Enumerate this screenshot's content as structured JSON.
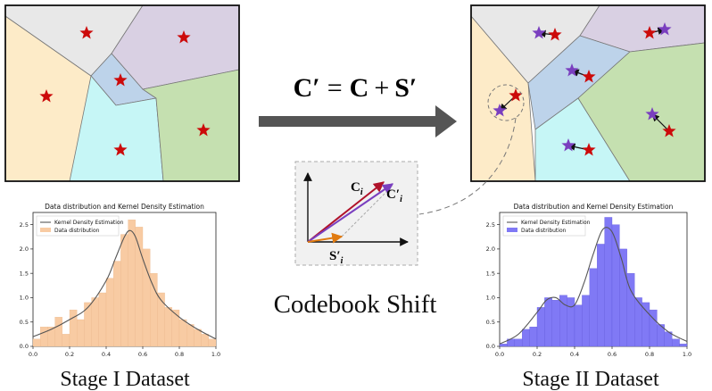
{
  "formula": {
    "lhs": "C′",
    "eq": "=",
    "c": "C",
    "plus": "+",
    "s": "S′"
  },
  "inset": {
    "ci_label": "C",
    "ci_sub": "i",
    "cip_label": "C′",
    "cip_sub": "i",
    "si_label": "S′",
    "si_sub": "i"
  },
  "labels": {
    "codebook_shift": "Codebook Shift",
    "stage1": "Stage I Dataset",
    "stage2": "Stage II Dataset"
  },
  "colors": {
    "region_cream": "#fdebc8",
    "region_gray": "#e8e8e8",
    "region_purple": "#d9d0e3",
    "region_blue": "#bdd3ea",
    "region_cyan": "#c6f6f6",
    "region_green": "#c5e0b0",
    "star_red": "#cc0a0a",
    "star_purple": "#7a3fbf",
    "arrow_gray": "#555555",
    "hist_orange": "#f8cba3",
    "hist_blue": "#8079f5",
    "kde_line": "#555555"
  },
  "chart_data": [
    {
      "type": "bar",
      "title": "Data distribution and Kernel Density Estimation",
      "legend": [
        "Kernel Density Estimation",
        "Data distribution"
      ],
      "legend_position": "top-left",
      "xticks": [
        "0.0",
        "0.2",
        "0.4",
        "0.6",
        "0.8",
        "1.0"
      ],
      "yticks": [
        "0.0",
        "0.5",
        "1.0",
        "1.5",
        "2.0",
        "2.5"
      ],
      "xlim": [
        0,
        1
      ],
      "ylim": [
        0,
        2.75
      ],
      "bin_width": 0.04,
      "x": [
        0.0,
        0.04,
        0.08,
        0.12,
        0.16,
        0.2,
        0.24,
        0.28,
        0.32,
        0.36,
        0.4,
        0.44,
        0.48,
        0.52,
        0.56,
        0.6,
        0.64,
        0.68,
        0.72,
        0.76,
        0.8,
        0.84,
        0.88,
        0.92,
        0.96
      ],
      "values": [
        0.15,
        0.4,
        0.4,
        0.6,
        0.25,
        0.75,
        0.55,
        0.9,
        1.0,
        1.1,
        1.4,
        1.75,
        2.3,
        2.6,
        2.45,
        2.0,
        1.5,
        1.1,
        0.8,
        0.75,
        0.55,
        0.45,
        0.35,
        0.25,
        0.15
      ],
      "kde_x": [
        0.0,
        0.1,
        0.2,
        0.3,
        0.4,
        0.45,
        0.5,
        0.53,
        0.56,
        0.6,
        0.65,
        0.7,
        0.8,
        0.9,
        1.0
      ],
      "kde_y": [
        0.2,
        0.35,
        0.55,
        0.8,
        1.35,
        1.8,
        2.25,
        2.38,
        2.25,
        1.8,
        1.3,
        0.95,
        0.6,
        0.35,
        0.15
      ]
    },
    {
      "type": "bar",
      "title": "Data distribution and Kernel Density Estimation",
      "legend": [
        "Kernel Density Estimation",
        "Data distribution"
      ],
      "legend_position": "top-left",
      "xticks": [
        "0.0",
        "0.2",
        "0.4",
        "0.6",
        "0.8",
        "1.0"
      ],
      "yticks": [
        "0.0",
        "0.5",
        "1.0",
        "1.5",
        "2.0",
        "2.5"
      ],
      "xlim": [
        0,
        1
      ],
      "ylim": [
        0,
        2.75
      ],
      "bin_width": 0.04,
      "x": [
        0.0,
        0.04,
        0.08,
        0.12,
        0.16,
        0.2,
        0.24,
        0.28,
        0.32,
        0.36,
        0.4,
        0.44,
        0.48,
        0.52,
        0.56,
        0.6,
        0.64,
        0.68,
        0.72,
        0.76,
        0.8,
        0.84,
        0.88,
        0.92,
        0.96
      ],
      "values": [
        0.05,
        0.15,
        0.15,
        0.35,
        0.4,
        0.8,
        1.0,
        0.95,
        1.05,
        1.0,
        0.85,
        1.05,
        1.6,
        2.1,
        2.65,
        2.5,
        2.0,
        1.5,
        1.0,
        0.9,
        0.75,
        0.45,
        0.3,
        0.15,
        0.05
      ],
      "kde_x": [
        0.0,
        0.1,
        0.2,
        0.25,
        0.3,
        0.35,
        0.4,
        0.45,
        0.5,
        0.55,
        0.6,
        0.65,
        0.7,
        0.8,
        0.9,
        1.0
      ],
      "kde_y": [
        0.05,
        0.25,
        0.7,
        0.95,
        1.0,
        0.85,
        0.85,
        1.3,
        1.9,
        2.4,
        2.35,
        1.8,
        1.15,
        0.65,
        0.3,
        0.1
      ]
    }
  ]
}
